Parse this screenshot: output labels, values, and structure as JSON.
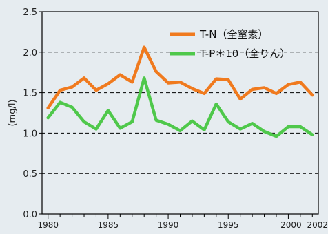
{
  "chart_data": {
    "type": "line",
    "title": "",
    "xlabel": "",
    "ylabel": "(mg/l)",
    "ylim": [
      0.0,
      2.5
    ],
    "yticks": [
      "0.0",
      "0.5",
      "1.0",
      "1.5",
      "2.0",
      "2.5"
    ],
    "xticks": [
      "1980",
      "1985",
      "1990",
      "1995",
      "2000",
      "2002"
    ],
    "grid": "dashed horizontal at 0.5, 1.0, 1.5, 2.0",
    "legend": "top-right, inside plot",
    "x": [
      1980,
      1981,
      1982,
      1983,
      1984,
      1985,
      1986,
      1987,
      1988,
      1989,
      1990,
      1991,
      1992,
      1993,
      1994,
      1995,
      1996,
      1997,
      1998,
      1999,
      2000,
      2001,
      2002
    ],
    "series": [
      {
        "name": "T-N（全窒素）",
        "color": "#f07a1e",
        "values": [
          1.31,
          1.53,
          1.57,
          1.68,
          1.53,
          1.61,
          1.72,
          1.63,
          2.06,
          1.76,
          1.62,
          1.63,
          1.55,
          1.49,
          1.67,
          1.66,
          1.42,
          1.54,
          1.56,
          1.49,
          1.6,
          1.63,
          1.47
        ]
      },
      {
        "name": "T-P＊10（全りん）",
        "color": "#4fc84b",
        "values": [
          1.19,
          1.38,
          1.32,
          1.14,
          1.05,
          1.28,
          1.06,
          1.14,
          1.68,
          1.16,
          1.11,
          1.03,
          1.15,
          1.04,
          1.36,
          1.14,
          1.05,
          1.12,
          1.02,
          0.96,
          1.08,
          1.08,
          0.98
        ]
      }
    ]
  }
}
